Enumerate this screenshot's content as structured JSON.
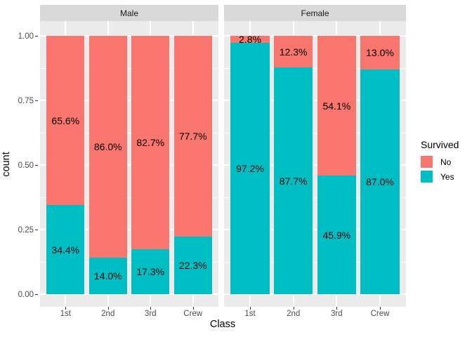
{
  "figure": {
    "background": "#FFFFFF",
    "panel_background": "#EBEBEB",
    "strip_background": "#D9D9D9",
    "gridline_color": "#FFFFFF",
    "axis_text_color": "#4D4D4D",
    "tick_mark_color": "#333333"
  },
  "chart_data": {
    "type": "bar",
    "subtype": "stacked-fill-faceted",
    "title": "",
    "xlabel": "Class",
    "ylabel": "count",
    "categories": [
      "1st",
      "2nd",
      "3rd",
      "Crew"
    ],
    "ylim": [
      0,
      1
    ],
    "grid": "major+minor",
    "yticks": [
      {
        "label": "1.00",
        "value": 1.0
      },
      {
        "label": "0.75",
        "value": 0.75
      },
      {
        "label": "0.50",
        "value": 0.5
      },
      {
        "label": "0.25",
        "value": 0.25
      },
      {
        "label": "0.00",
        "value": 0.0
      }
    ],
    "yticks_minor": [
      0.875,
      0.625,
      0.375,
      0.125
    ],
    "legend": {
      "title": "Survived",
      "position": "right",
      "entries": [
        {
          "label": "No",
          "color": "#F8766D"
        },
        {
          "label": "Yes",
          "color": "#00BFC4"
        }
      ]
    },
    "facets": [
      {
        "label": "Male",
        "bars": [
          {
            "category": "1st",
            "no_pct": 65.6,
            "yes_pct": 34.4,
            "no_label": "65.6%",
            "yes_label": "34.4%"
          },
          {
            "category": "2nd",
            "no_pct": 86.0,
            "yes_pct": 14.0,
            "no_label": "86.0%",
            "yes_label": "14.0%"
          },
          {
            "category": "3rd",
            "no_pct": 82.7,
            "yes_pct": 17.3,
            "no_label": "82.7%",
            "yes_label": "17.3%"
          },
          {
            "category": "Crew",
            "no_pct": 77.7,
            "yes_pct": 22.3,
            "no_label": "77.7%",
            "yes_label": "22.3%"
          }
        ]
      },
      {
        "label": "Female",
        "bars": [
          {
            "category": "1st",
            "no_pct": 2.8,
            "yes_pct": 97.2,
            "no_label": "2.8%",
            "yes_label": "97.2%"
          },
          {
            "category": "2nd",
            "no_pct": 12.3,
            "yes_pct": 87.7,
            "no_label": "12.3%",
            "yes_label": "87.7%"
          },
          {
            "category": "3rd",
            "no_pct": 54.1,
            "yes_pct": 45.9,
            "no_label": "54.1%",
            "yes_label": "45.9%"
          },
          {
            "category": "Crew",
            "no_pct": 13.0,
            "yes_pct": 87.0,
            "no_label": "13.0%",
            "yes_label": "87.0%"
          }
        ]
      }
    ]
  }
}
